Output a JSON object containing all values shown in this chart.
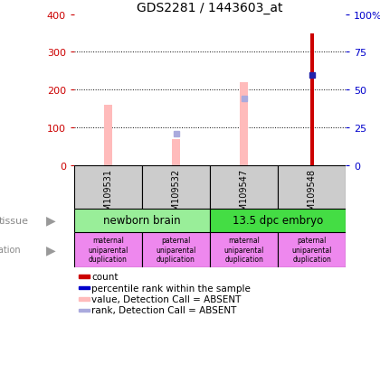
{
  "title": "GDS2281 / 1443603_at",
  "samples": [
    "GSM109531",
    "GSM109532",
    "GSM109547",
    "GSM109548"
  ],
  "count_values": [
    null,
    null,
    null,
    350
  ],
  "percentile_values": [
    null,
    null,
    null,
    238
  ],
  "value_absent": [
    160,
    70,
    220,
    null
  ],
  "rank_absent": [
    null,
    85,
    178,
    null
  ],
  "ylim_left": [
    0,
    400
  ],
  "ylim_right": [
    0,
    100
  ],
  "yticks_left": [
    0,
    100,
    200,
    300,
    400
  ],
  "yticks_right": [
    0,
    25,
    50,
    75,
    100
  ],
  "ytick_labels_left": [
    "0",
    "100",
    "200",
    "300",
    "400"
  ],
  "ytick_labels_right": [
    "0",
    "25",
    "50",
    "75",
    "100%"
  ],
  "tissue_groups": [
    {
      "label": "newborn brain",
      "cols": [
        0,
        1
      ],
      "color": "#99ee99"
    },
    {
      "label": "13.5 dpc embryo",
      "cols": [
        2,
        3
      ],
      "color": "#44dd44"
    }
  ],
  "genotype_groups": [
    {
      "label": "maternal\nuniparental\nduplication",
      "col": 0,
      "color": "#ee88ee"
    },
    {
      "label": "paternal\nuniparental\nduplication",
      "col": 1,
      "color": "#ee88ee"
    },
    {
      "label": "maternal\nuniparental\nduplication",
      "col": 2,
      "color": "#ee88ee"
    },
    {
      "label": "paternal\nuniparental\nduplication",
      "col": 3,
      "color": "#ee88ee"
    }
  ],
  "legend_items": [
    {
      "label": "count",
      "color": "#cc0000"
    },
    {
      "label": "percentile rank within the sample",
      "color": "#0000cc"
    },
    {
      "label": "value, Detection Call = ABSENT",
      "color": "#ffbbbb"
    },
    {
      "label": "rank, Detection Call = ABSENT",
      "color": "#aaaadd"
    }
  ],
  "count_color": "#cc0000",
  "percentile_color": "#2222aa",
  "value_absent_color": "#ffbbbb",
  "rank_absent_color": "#aaaadd",
  "bg_color": "#cccccc",
  "plot_bg": "#ffffff",
  "value_bar_width": 0.12,
  "count_bar_width": 0.05
}
